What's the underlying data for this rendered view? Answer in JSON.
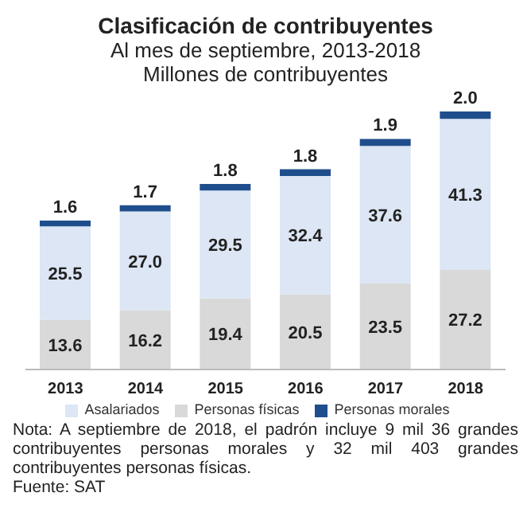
{
  "chart_data": {
    "type": "bar",
    "stacked": true,
    "title": "Clasificación de contribuyentes",
    "subtitle": "Al mes de septiembre, 2013-2018\nMillones de contribuyentes",
    "categories": [
      "2013",
      "2014",
      "2015",
      "2016",
      "2017",
      "2018"
    ],
    "series": [
      {
        "name": "Personas físicas",
        "color": "#d9d9d9",
        "values": [
          13.6,
          16.2,
          19.4,
          20.5,
          23.5,
          27.2
        ],
        "value_labels": [
          "13.6",
          "16.2",
          "19.4",
          "20.5",
          "23.5",
          "27.2"
        ]
      },
      {
        "name": "Asalariados",
        "color": "#dce6f4",
        "values": [
          25.5,
          27.0,
          29.5,
          32.4,
          37.6,
          41.3
        ],
        "value_labels": [
          "25.5",
          "27.0",
          "29.5",
          "32.4",
          "37.6",
          "41.3"
        ]
      },
      {
        "name": "Personas morales",
        "color": "#1f4e8c",
        "values": [
          1.6,
          1.7,
          1.8,
          1.8,
          1.9,
          2.0
        ],
        "value_labels": [
          "1.6",
          "1.7",
          "1.8",
          "1.8",
          "1.9",
          "2.0"
        ]
      }
    ],
    "legend": "bottom",
    "grid": false,
    "annotations": [
      "Nota: A septiembre de 2018, el padrón incluye 9 mil 36 grandes contribuyentes personas morales y 32 mil 403 grandes contribuyentes personas físicas.",
      "Fuente: SAT"
    ]
  }
}
